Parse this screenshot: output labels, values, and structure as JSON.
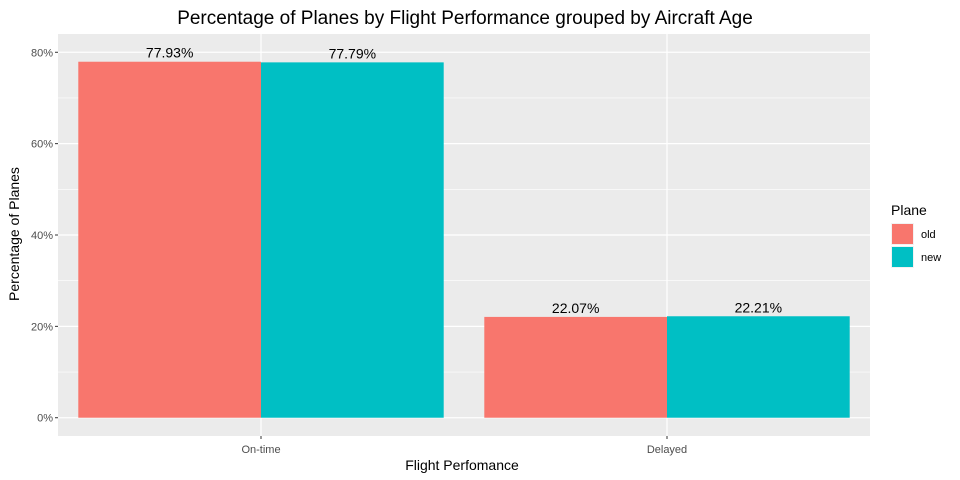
{
  "chart_data": {
    "type": "bar",
    "title": "Percentage of Planes by Flight Performance grouped by Aircraft Age",
    "xlabel": "Flight Perfomance",
    "ylabel": "Percentage of Planes",
    "categories": [
      "On-time",
      "Delayed"
    ],
    "series": [
      {
        "name": "old",
        "values": [
          77.93,
          22.07
        ],
        "labels": [
          "77.93%",
          "22.07%"
        ],
        "color": "#F8766D"
      },
      {
        "name": "new",
        "values": [
          77.79,
          22.21
        ],
        "labels": [
          "77.79%",
          "22.21%"
        ],
        "color": "#00BFC4"
      }
    ],
    "ylim": [
      -4,
      84
    ],
    "yticks": [
      0,
      20,
      40,
      60,
      80
    ],
    "ytick_labels": [
      "0%",
      "20%",
      "40%",
      "60%",
      "80%"
    ],
    "grid": true,
    "legend": {
      "title": "Plane",
      "position": "right"
    },
    "panel_background": "#EBEBEB",
    "grid_color": "#FFFFFF"
  }
}
